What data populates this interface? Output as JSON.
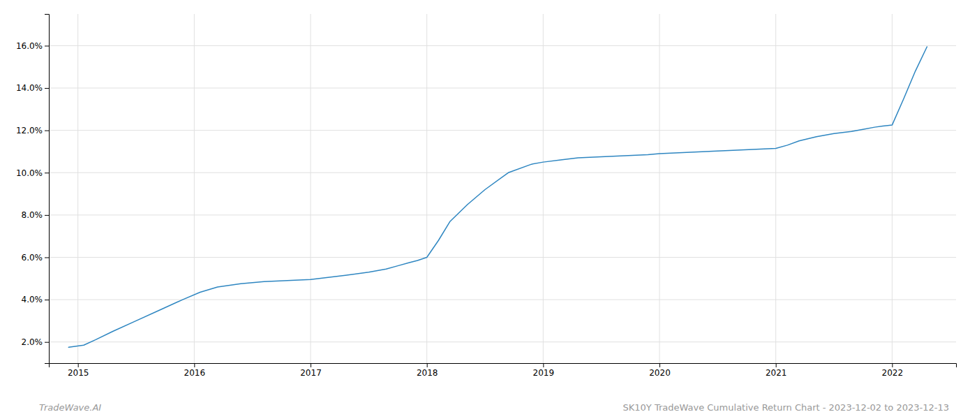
{
  "chart_data": {
    "type": "line",
    "title": "SK10Y TradeWave Cumulative Return Chart - 2023-12-02 to 2023-12-13",
    "annotations": [
      "TradeWave.AI"
    ],
    "color": "#2e86c1",
    "grid": true,
    "x": [
      2014.92,
      2015.05,
      2015.15,
      2015.3,
      2015.5,
      2015.7,
      2015.9,
      2016.05,
      2016.2,
      2016.4,
      2016.6,
      2016.8,
      2017.0,
      2017.15,
      2017.3,
      2017.5,
      2017.65,
      2017.75,
      2017.85,
      2017.92,
      2018.0,
      2018.1,
      2018.2,
      2018.35,
      2018.5,
      2018.7,
      2018.9,
      2019.0,
      2019.15,
      2019.3,
      2019.5,
      2019.7,
      2019.9,
      2020.0,
      2020.2,
      2020.4,
      2020.6,
      2020.8,
      2021.0,
      2021.1,
      2021.2,
      2021.35,
      2021.5,
      2021.65,
      2021.75,
      2021.85,
      2021.92,
      2022.0,
      2022.1,
      2022.2,
      2022.3
    ],
    "values": [
      1.75,
      1.85,
      2.1,
      2.5,
      3.0,
      3.5,
      4.0,
      4.35,
      4.6,
      4.75,
      4.85,
      4.9,
      4.95,
      5.05,
      5.15,
      5.3,
      5.45,
      5.6,
      5.75,
      5.85,
      6.0,
      6.8,
      7.7,
      8.5,
      9.2,
      10.0,
      10.4,
      10.5,
      10.6,
      10.7,
      10.75,
      10.8,
      10.85,
      10.9,
      10.95,
      11.0,
      11.05,
      11.1,
      11.15,
      11.3,
      11.5,
      11.7,
      11.85,
      11.95,
      12.05,
      12.15,
      12.2,
      12.25,
      13.5,
      14.8,
      15.95
    ],
    "xlim": [
      2014.75,
      2022.55
    ],
    "ylim": [
      1.0,
      17.5
    ],
    "xticks": [
      2015,
      2016,
      2017,
      2018,
      2019,
      2020,
      2021,
      2022
    ],
    "yticks": [
      {
        "value": 2.0,
        "label": "2.0%"
      },
      {
        "value": 4.0,
        "label": "4.0%"
      },
      {
        "value": 6.0,
        "label": "6.0%"
      },
      {
        "value": 8.0,
        "label": "8.0%"
      },
      {
        "value": 10.0,
        "label": "10.0%"
      },
      {
        "value": 12.0,
        "label": "12.0%"
      },
      {
        "value": 14.0,
        "label": "14.0%"
      },
      {
        "value": 16.0,
        "label": "16.0%"
      }
    ]
  }
}
